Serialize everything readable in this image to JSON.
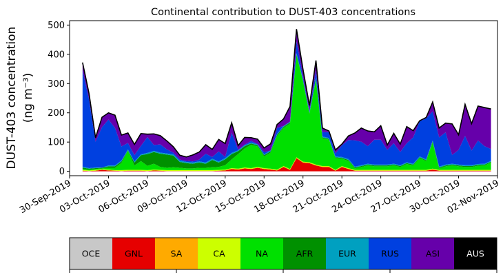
{
  "chart_data": {
    "type": "area",
    "stacked": true,
    "title": "Continental contribution to DUST-403 concentrations",
    "ylabel_line1": "DUST-403 concentration",
    "ylabel_line2": "(ng m⁻³)",
    "ylim": [
      -15,
      515
    ],
    "yticks": [
      0,
      100,
      200,
      300,
      400,
      500
    ],
    "x_range": [
      "2019-09-30",
      "2019-11-02"
    ],
    "x_tick_labels": [
      "30-Sep-2019",
      "03-Oct-2019",
      "06-Oct-2019",
      "09-Oct-2019",
      "12-Oct-2019",
      "15-Oct-2019",
      "18-Oct-2019",
      "21-Oct-2019",
      "24-Oct-2019",
      "27-Oct-2019",
      "30-Oct-2019",
      "02-Nov-2019"
    ],
    "x_tick_dates": [
      "2019-09-30",
      "2019-10-03",
      "2019-10-06",
      "2019-10-09",
      "2019-10-12",
      "2019-10-15",
      "2019-10-18",
      "2019-10-21",
      "2019-10-24",
      "2019-10-27",
      "2019-10-30",
      "2019-11-02"
    ],
    "x": [
      "2019-10-01T00",
      "2019-10-01T12",
      "2019-10-02T00",
      "2019-10-02T12",
      "2019-10-03T00",
      "2019-10-03T12",
      "2019-10-04T00",
      "2019-10-04T12",
      "2019-10-05T00",
      "2019-10-05T12",
      "2019-10-06T00",
      "2019-10-06T12",
      "2019-10-07T00",
      "2019-10-07T12",
      "2019-10-08T00",
      "2019-10-08T12",
      "2019-10-09T00",
      "2019-10-09T12",
      "2019-10-10T00",
      "2019-10-10T12",
      "2019-10-11T00",
      "2019-10-11T12",
      "2019-10-12T00",
      "2019-10-12T12",
      "2019-10-13T00",
      "2019-10-13T12",
      "2019-10-14T00",
      "2019-10-14T12",
      "2019-10-15T00",
      "2019-10-15T12",
      "2019-10-16T00",
      "2019-10-16T12",
      "2019-10-17T00",
      "2019-10-17T12",
      "2019-10-18T00",
      "2019-10-18T12",
      "2019-10-19T00",
      "2019-10-19T12",
      "2019-10-20T00",
      "2019-10-20T12",
      "2019-10-21T00",
      "2019-10-21T12",
      "2019-10-22T00",
      "2019-10-22T12",
      "2019-10-23T00",
      "2019-10-23T12",
      "2019-10-24T00",
      "2019-10-24T12",
      "2019-10-25T00",
      "2019-10-25T12",
      "2019-10-26T00",
      "2019-10-26T12",
      "2019-10-27T00",
      "2019-10-27T12",
      "2019-10-28T00",
      "2019-10-28T12",
      "2019-10-29T00",
      "2019-10-29T12",
      "2019-10-30T00",
      "2019-10-30T12",
      "2019-10-31T00",
      "2019-10-31T12",
      "2019-11-01T00",
      "2019-11-01T12"
    ],
    "series": [
      {
        "name": "OCE",
        "color": "#c8c8c8",
        "values": [
          0,
          0,
          0,
          0,
          0,
          0,
          0,
          0,
          0,
          0,
          0,
          0,
          0,
          0,
          0,
          0,
          0,
          0,
          0,
          0,
          0,
          0,
          0,
          0,
          0,
          0,
          0,
          0,
          0,
          0,
          0,
          0,
          0,
          0,
          0,
          0,
          0,
          0,
          0,
          0,
          0,
          0,
          0,
          0,
          0,
          0,
          0,
          0,
          0,
          0,
          0,
          0,
          0,
          0,
          0,
          0,
          0,
          0,
          0,
          0,
          0,
          0,
          0,
          0
        ]
      },
      {
        "name": "GNL",
        "color": "#e60000",
        "values": [
          2,
          1,
          2,
          5,
          3,
          2,
          1,
          2,
          2,
          2,
          1,
          3,
          2,
          1,
          1,
          1,
          1,
          1,
          1,
          1,
          1,
          2,
          3,
          8,
          6,
          10,
          8,
          12,
          8,
          6,
          3,
          15,
          5,
          45,
          30,
          28,
          20,
          15,
          15,
          2,
          15,
          8,
          2,
          2,
          2,
          2,
          2,
          2,
          2,
          2,
          2,
          2,
          2,
          2,
          6,
          2,
          2,
          2,
          2,
          2,
          2,
          2,
          2,
          2
        ]
      },
      {
        "name": "SA",
        "color": "#ffaa00",
        "values": [
          0,
          0,
          0,
          0,
          0,
          0,
          0,
          0,
          0,
          0,
          0,
          0,
          0,
          0,
          0,
          0,
          0,
          0,
          0,
          0,
          0,
          0,
          0,
          0,
          0,
          0,
          0,
          0,
          0,
          0,
          0,
          0,
          0,
          0,
          0,
          0,
          0,
          0,
          0,
          0,
          0,
          0,
          0,
          0,
          0,
          0,
          0,
          0,
          0,
          0,
          0,
          0,
          0,
          0,
          0,
          0,
          0,
          0,
          0,
          0,
          0,
          0,
          0,
          0
        ]
      },
      {
        "name": "CA",
        "color": "#ccff00",
        "values": [
          3,
          2,
          3,
          2,
          3,
          2,
          3,
          3,
          3,
          3,
          3,
          3,
          3,
          3,
          3,
          3,
          3,
          3,
          3,
          3,
          3,
          3,
          3,
          3,
          3,
          3,
          3,
          3,
          3,
          3,
          3,
          3,
          3,
          3,
          3,
          3,
          3,
          3,
          3,
          3,
          3,
          3,
          3,
          3,
          3,
          3,
          3,
          3,
          3,
          3,
          3,
          3,
          3,
          3,
          3,
          3,
          3,
          3,
          3,
          3,
          3,
          3,
          3,
          3
        ]
      },
      {
        "name": "NA",
        "color": "#00e000",
        "values": [
          3,
          3,
          3,
          3,
          6,
          8,
          25,
          65,
          15,
          30,
          15,
          20,
          10,
          8,
          10,
          8,
          6,
          6,
          8,
          8,
          10,
          10,
          15,
          30,
          50,
          65,
          80,
          70,
          40,
          55,
          115,
          130,
          155,
          350,
          275,
          165,
          290,
          95,
          90,
          40,
          25,
          25,
          5,
          10,
          15,
          12,
          12,
          12,
          15,
          10,
          20,
          15,
          40,
          30,
          90,
          5,
          12,
          15,
          12,
          10,
          10,
          14,
          15,
          25
        ]
      },
      {
        "name": "AFR",
        "color": "#009000",
        "values": [
          5,
          3,
          3,
          2,
          5,
          5,
          5,
          2,
          10,
          20,
          40,
          40,
          45,
          45,
          40,
          20,
          18,
          16,
          18,
          14,
          25,
          15,
          20,
          18,
          10,
          8,
          4,
          4,
          4,
          4,
          4,
          4,
          4,
          3,
          3,
          3,
          3,
          3,
          3,
          3,
          3,
          3,
          3,
          3,
          3,
          3,
          3,
          3,
          3,
          3,
          3,
          3,
          3,
          3,
          3,
          3,
          3,
          3,
          3,
          3,
          3,
          3,
          3,
          3
        ]
      },
      {
        "name": "EUR",
        "color": "#00a0c0",
        "values": [
          3,
          2,
          2,
          1,
          3,
          3,
          3,
          3,
          3,
          3,
          4,
          4,
          4,
          4,
          4,
          4,
          4,
          4,
          4,
          4,
          4,
          4,
          4,
          4,
          3,
          3,
          3,
          3,
          3,
          3,
          3,
          3,
          3,
          3,
          3,
          3,
          3,
          3,
          3,
          3,
          3,
          3,
          3,
          3,
          3,
          3,
          3,
          3,
          3,
          3,
          3,
          3,
          3,
          3,
          3,
          3,
          3,
          3,
          3,
          3,
          3,
          3,
          3,
          3
        ]
      },
      {
        "name": "RUS",
        "color": "#0040e0",
        "values": [
          329,
          235,
          88,
          138,
          157,
          128,
          48,
          22,
          22,
          29,
          54,
          20,
          28,
          14,
          6,
          4,
          4,
          4,
          6,
          30,
          6,
          34,
          4,
          69,
          2,
          2,
          6,
          1,
          8,
          0,
          20,
          0,
          0,
          40,
          10,
          5,
          25,
          15,
          20,
          10,
          40,
          65,
          90,
          80,
          60,
          85,
          85,
          50,
          70,
          45,
          65,
          90,
          120,
          140,
          100,
          100,
          110,
          30,
          50,
          100,
          50,
          80,
          60,
          40
        ]
      },
      {
        "name": "ASI",
        "color": "#6600aa",
        "values": [
          27,
          20,
          14,
          34,
          23,
          44,
          39,
          34,
          37,
          42,
          10,
          38,
          30,
          29,
          20,
          15,
          13,
          22,
          26,
          31,
          26,
          41,
          46,
          34,
          14,
          25,
          11,
          17,
          14,
          23,
          12,
          24,
          52,
          42,
          25,
          18,
          35,
          14,
          4,
          12,
          4,
          14,
          25,
          47,
          52,
          27,
          48,
          17,
          34,
          27,
          57,
          23,
          2,
          3,
          32,
          32,
          32,
          106,
          52,
          108,
          92,
          118,
          132,
          137
        ]
      },
      {
        "name": "AUS",
        "color": "#000000",
        "values": [
          0,
          0,
          0,
          0,
          0,
          0,
          0,
          0,
          0,
          0,
          0,
          0,
          0,
          0,
          0,
          0,
          0,
          0,
          0,
          0,
          0,
          0,
          0,
          0,
          0,
          0,
          0,
          0,
          0,
          0,
          0,
          0,
          0,
          0,
          0,
          0,
          0,
          0,
          0,
          0,
          0,
          0,
          0,
          0,
          0,
          0,
          0,
          0,
          0,
          0,
          0,
          0,
          0,
          0,
          0,
          0,
          0,
          0,
          0,
          0,
          0,
          0,
          0,
          0
        ]
      }
    ],
    "legend": {
      "placement": "bottom",
      "entries": [
        {
          "label": "OCE",
          "color": "#c8c8c8",
          "text_color": "#000000"
        },
        {
          "label": "GNL",
          "color": "#e60000",
          "text_color": "#000000"
        },
        {
          "label": "SA",
          "color": "#ffaa00",
          "text_color": "#000000"
        },
        {
          "label": "CA",
          "color": "#ccff00",
          "text_color": "#000000"
        },
        {
          "label": "NA",
          "color": "#00e000",
          "text_color": "#000000"
        },
        {
          "label": "AFR",
          "color": "#009000",
          "text_color": "#000000"
        },
        {
          "label": "EUR",
          "color": "#00a0c0",
          "text_color": "#000000"
        },
        {
          "label": "RUS",
          "color": "#0040e0",
          "text_color": "#000000"
        },
        {
          "label": "ASI",
          "color": "#6600aa",
          "text_color": "#000000"
        },
        {
          "label": "AUS",
          "color": "#000000",
          "text_color": "#ffffff"
        }
      ]
    },
    "grid": false
  }
}
